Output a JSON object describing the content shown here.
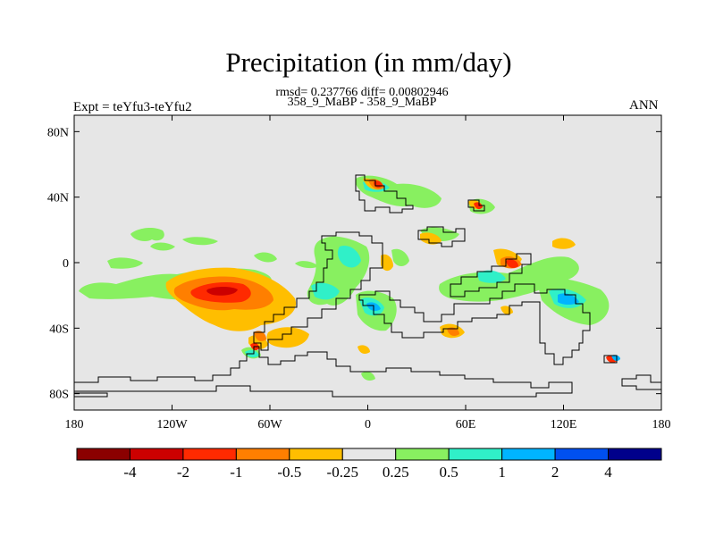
{
  "header": {
    "title": "Precipitation (in mm/day)",
    "stats": "rmsd= 0.237766 diff= 0.00802946",
    "case": "358_9_MaBP - 358_9_MaBP",
    "experiment": "Expt = teYfu3-teYfu2",
    "season": "ANN"
  },
  "map": {
    "lon_range": [
      -180,
      180
    ],
    "lat_range": [
      -90,
      90
    ],
    "background_color": "#e6e6e6",
    "x_ticks": [
      {
        "lon": -180,
        "label": "180"
      },
      {
        "lon": -120,
        "label": "120W"
      },
      {
        "lon": -60,
        "label": "60W"
      },
      {
        "lon": 0,
        "label": "0"
      },
      {
        "lon": 60,
        "label": "60E"
      },
      {
        "lon": 120,
        "label": "120E"
      },
      {
        "lon": 180,
        "label": "180"
      }
    ],
    "y_ticks": [
      {
        "lat": 80,
        "label": "80N"
      },
      {
        "lat": 40,
        "label": "40N"
      },
      {
        "lat": 0,
        "label": "0"
      },
      {
        "lat": -40,
        "label": "40S"
      },
      {
        "lat": -80,
        "label": "80S"
      }
    ]
  },
  "colorbar": {
    "colors": [
      "#8b0000",
      "#cc0000",
      "#ff2a00",
      "#ff7f00",
      "#ffbe00",
      "#e6e6e6",
      "#88f060",
      "#30f0c8",
      "#00b4ff",
      "#0050f0",
      "#00008b"
    ],
    "labels": [
      "-4",
      "-2",
      "-1",
      "-0.5",
      "-0.25",
      "0.25",
      "0.5",
      "1",
      "2",
      "4"
    ]
  }
}
